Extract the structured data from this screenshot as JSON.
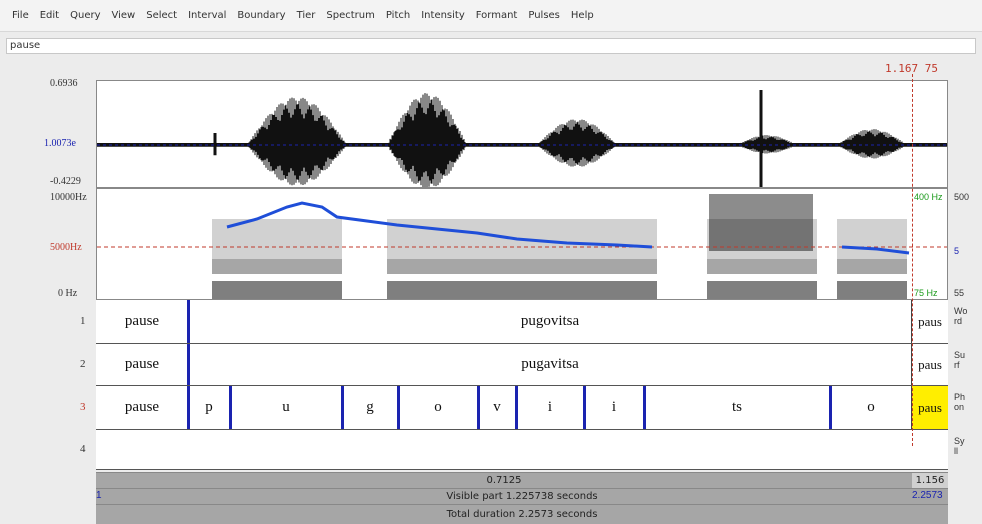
{
  "menu": [
    "File",
    "Edit",
    "Query",
    "View",
    "Select",
    "Interval",
    "Boundary",
    "Tier",
    "Spectrum",
    "Pitch",
    "Intensity",
    "Formant",
    "Pulses",
    "Help"
  ],
  "input_value": "pause",
  "cursor_time": "1.167 75",
  "waveform": {
    "ymax": "0.6936",
    "ymid": "1.0073e",
    "ymin": "-0.4229"
  },
  "spectrogram": {
    "ytop": "10000Hz",
    "ymid": "5000Hz",
    "ybot": "0 Hz",
    "right_top": "400 Hz",
    "right_top2": "500",
    "right_mid": "5",
    "right_bot": "75 Hz",
    "right_bot2": "55"
  },
  "tiers": [
    {
      "num": "1",
      "segments": [
        "pause",
        "pugovitsa",
        "paus"
      ],
      "right_label": "Wo\nrd"
    },
    {
      "num": "2",
      "segments": [
        "pause",
        "pugavitsa",
        "paus"
      ],
      "right_label": "Su\nrf"
    },
    {
      "num": "3",
      "segments": [
        "pause",
        "p",
        "u",
        "g",
        "o",
        "v",
        "i",
        "i",
        "ts",
        "o",
        "paus"
      ],
      "right_label": "Ph\non"
    },
    {
      "num": "4",
      "segments": [],
      "right_label": "Sy\nll"
    }
  ],
  "bottom": {
    "row1_center": "0.7125",
    "row1_right": "1.156",
    "row2_left": "1",
    "row2_center": "Visible part 1.225738 seconds",
    "row2_right": "2.2573",
    "row3_center": "Total duration 2.2573 seconds"
  },
  "colors": {
    "boundary": "#1a23b0",
    "cursor": "#c0392b",
    "selection": "#ffee00",
    "pitch": "#1f4ed8"
  }
}
